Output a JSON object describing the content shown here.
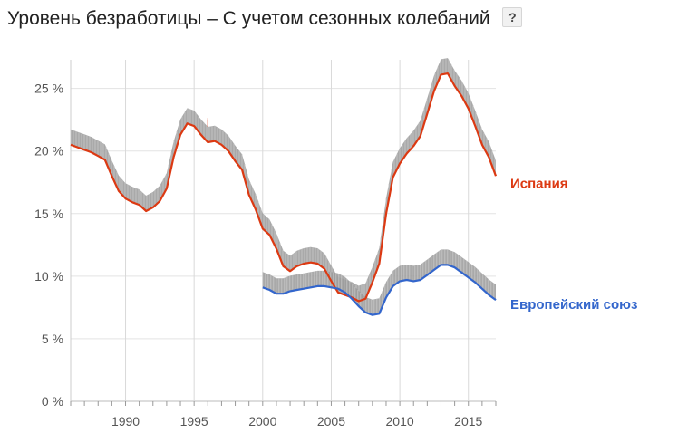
{
  "header": {
    "title": "Уровень безработицы – С учетом сезонных колебаний",
    "help_label": "?"
  },
  "chart_data": {
    "type": "line",
    "title": "Уровень безработицы – С учетом сезонных колебаний",
    "xlabel": "",
    "ylabel": "",
    "xlim": [
      1986,
      2017
    ],
    "ylim": [
      0,
      27
    ],
    "y_ticks": [
      0,
      5,
      10,
      15,
      20,
      25
    ],
    "y_tick_labels": [
      "0 %",
      "5 %",
      "10 %",
      "15 %",
      "20 %",
      "25 %"
    ],
    "x_ticks": [
      1990,
      1995,
      2000,
      2005,
      2010,
      2015
    ],
    "x_tick_labels": [
      "1990",
      "1995",
      "2000",
      "2005",
      "2010",
      "2015"
    ],
    "grid": true,
    "legend": "right",
    "annotation": {
      "text": "i",
      "x": 1996,
      "y": 22.5
    },
    "series": [
      {
        "name": "Испания",
        "color": "#dc3912",
        "points": [
          [
            1986.0,
            20.5
          ],
          [
            1986.5,
            20.3
          ],
          [
            1987.0,
            20.1
          ],
          [
            1987.5,
            19.9
          ],
          [
            1988.0,
            19.6
          ],
          [
            1988.5,
            19.3
          ],
          [
            1989.0,
            18.0
          ],
          [
            1989.5,
            16.8
          ],
          [
            1990.0,
            16.2
          ],
          [
            1990.5,
            15.9
          ],
          [
            1991.0,
            15.7
          ],
          [
            1991.5,
            15.2
          ],
          [
            1992.0,
            15.5
          ],
          [
            1992.5,
            16.0
          ],
          [
            1993.0,
            17.0
          ],
          [
            1993.5,
            19.5
          ],
          [
            1994.0,
            21.3
          ],
          [
            1994.5,
            22.2
          ],
          [
            1995.0,
            22.0
          ],
          [
            1995.5,
            21.3
          ],
          [
            1996.0,
            20.7
          ],
          [
            1996.5,
            20.8
          ],
          [
            1997.0,
            20.5
          ],
          [
            1997.5,
            20.0
          ],
          [
            1998.0,
            19.2
          ],
          [
            1998.5,
            18.5
          ],
          [
            1999.0,
            16.5
          ],
          [
            1999.5,
            15.3
          ],
          [
            2000.0,
            13.8
          ],
          [
            2000.5,
            13.3
          ],
          [
            2001.0,
            12.2
          ],
          [
            2001.5,
            10.8
          ],
          [
            2002.0,
            10.4
          ],
          [
            2002.5,
            10.8
          ],
          [
            2003.0,
            11.0
          ],
          [
            2003.5,
            11.1
          ],
          [
            2004.0,
            11.0
          ],
          [
            2004.5,
            10.6
          ],
          [
            2005.0,
            9.6
          ],
          [
            2005.5,
            8.7
          ],
          [
            2006.0,
            8.5
          ],
          [
            2006.5,
            8.3
          ],
          [
            2007.0,
            8.0
          ],
          [
            2007.5,
            8.2
          ],
          [
            2008.0,
            9.5
          ],
          [
            2008.5,
            11.0
          ],
          [
            2009.0,
            15.0
          ],
          [
            2009.5,
            17.9
          ],
          [
            2010.0,
            19.0
          ],
          [
            2010.5,
            19.8
          ],
          [
            2011.0,
            20.4
          ],
          [
            2011.5,
            21.2
          ],
          [
            2012.0,
            23.0
          ],
          [
            2012.5,
            24.8
          ],
          [
            2013.0,
            26.1
          ],
          [
            2013.5,
            26.2
          ],
          [
            2014.0,
            25.2
          ],
          [
            2014.5,
            24.4
          ],
          [
            2015.0,
            23.4
          ],
          [
            2015.5,
            22.0
          ],
          [
            2016.0,
            20.5
          ],
          [
            2016.5,
            19.5
          ],
          [
            2017.0,
            18.0
          ]
        ]
      },
      {
        "name": "Европейский союз",
        "color": "#3366cc",
        "points": [
          [
            2000.0,
            9.1
          ],
          [
            2000.5,
            8.9
          ],
          [
            2001.0,
            8.6
          ],
          [
            2001.5,
            8.6
          ],
          [
            2002.0,
            8.8
          ],
          [
            2002.5,
            8.9
          ],
          [
            2003.0,
            9.0
          ],
          [
            2003.5,
            9.1
          ],
          [
            2004.0,
            9.2
          ],
          [
            2004.5,
            9.2
          ],
          [
            2005.0,
            9.1
          ],
          [
            2005.5,
            9.0
          ],
          [
            2006.0,
            8.7
          ],
          [
            2006.5,
            8.2
          ],
          [
            2007.0,
            7.6
          ],
          [
            2007.5,
            7.1
          ],
          [
            2008.0,
            6.9
          ],
          [
            2008.5,
            7.0
          ],
          [
            2009.0,
            8.3
          ],
          [
            2009.5,
            9.2
          ],
          [
            2010.0,
            9.6
          ],
          [
            2010.5,
            9.7
          ],
          [
            2011.0,
            9.6
          ],
          [
            2011.5,
            9.7
          ],
          [
            2012.0,
            10.1
          ],
          [
            2012.5,
            10.5
          ],
          [
            2013.0,
            10.9
          ],
          [
            2013.5,
            10.9
          ],
          [
            2014.0,
            10.7
          ],
          [
            2014.5,
            10.3
          ],
          [
            2015.0,
            9.9
          ],
          [
            2015.5,
            9.5
          ],
          [
            2016.0,
            9.0
          ],
          [
            2016.5,
            8.5
          ],
          [
            2017.0,
            8.1
          ]
        ]
      }
    ]
  }
}
